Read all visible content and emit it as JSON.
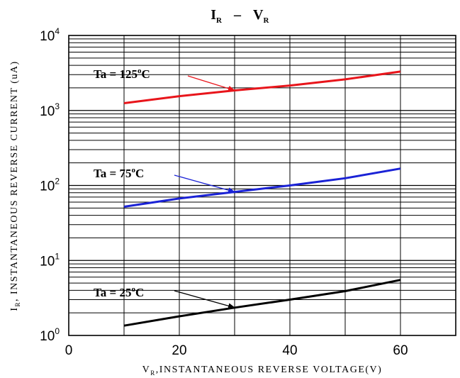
{
  "chart_data": {
    "type": "line",
    "title": {
      "main_left": "I",
      "main_left_sub": "R",
      "separator": "–",
      "main_right": "V",
      "main_right_sub": "R"
    },
    "xlabel": {
      "symbol": "V",
      "sub": "R",
      "text": ",INSTANTANEOUS REVERSE VOLTAGE(V)"
    },
    "ylabel": {
      "symbol": "I",
      "sub": "R",
      "text": ", INSTANTANEOUS REVERSE CURRENT (uA)"
    },
    "x_scale": "linear",
    "y_scale": "log",
    "xlim": [
      0,
      70
    ],
    "ylim": [
      1,
      10000
    ],
    "x_ticks": [
      0,
      20,
      40,
      60
    ],
    "x_tick_labels": [
      "0",
      "20",
      "40",
      "60"
    ],
    "y_ticks": [
      1,
      10,
      100,
      1000,
      10000
    ],
    "y_tick_labels": [
      {
        "base": "10",
        "exp": "0"
      },
      {
        "base": "10",
        "exp": "1"
      },
      {
        "base": "10",
        "exp": "2"
      },
      {
        "base": "10",
        "exp": "3"
      },
      {
        "base": "10",
        "exp": "4"
      }
    ],
    "grid": true,
    "series": [
      {
        "color": "#e8151b",
        "x": [
          10,
          20,
          30,
          40,
          50,
          60
        ],
        "y": [
          1250,
          1550,
          1850,
          2150,
          2600,
          3300
        ]
      },
      {
        "color": "#1a22d6",
        "x": [
          10,
          20,
          30,
          40,
          50,
          60
        ],
        "y": [
          52,
          67,
          82,
          100,
          125,
          168
        ]
      },
      {
        "color": "#000000",
        "x": [
          10,
          20,
          30,
          40,
          50,
          60
        ],
        "y": [
          1.35,
          1.8,
          2.35,
          3.0,
          3.9,
          5.5
        ]
      }
    ],
    "annotations": [
      {
        "text": "Ta = 125",
        "sup": "o",
        "unit": "C",
        "color": "#e8151b",
        "point": {
          "x": 30,
          "y": 1850
        }
      },
      {
        "text": "Ta = 75",
        "sup": "o",
        "unit": "C",
        "color": "#1a22d6",
        "point": {
          "x": 30,
          "y": 82
        }
      },
      {
        "text": "Ta = 25",
        "sup": "o",
        "unit": "C",
        "color": "#000000",
        "point": {
          "x": 30,
          "y": 2.35
        }
      }
    ]
  }
}
